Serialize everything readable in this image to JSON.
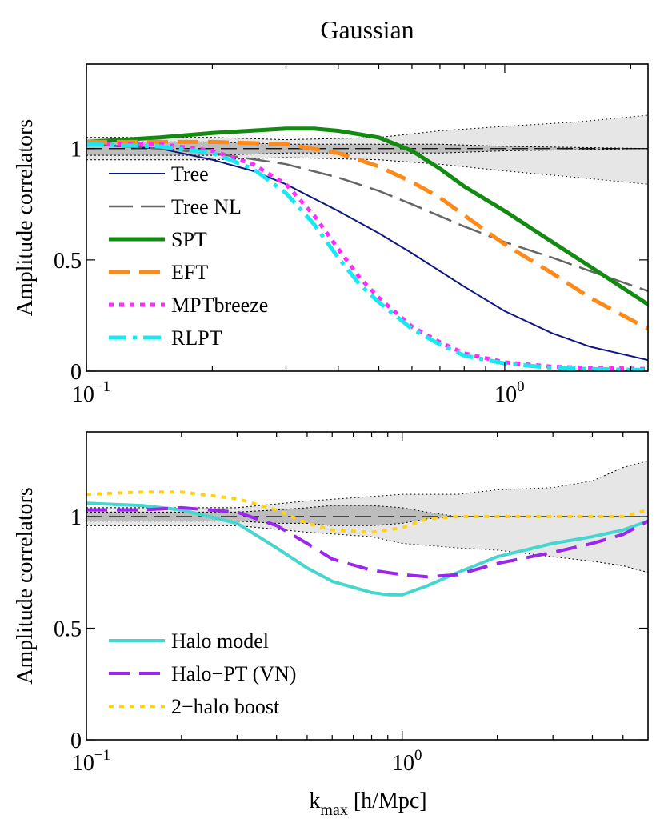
{
  "chart_data": [
    {
      "type": "line",
      "panel": "top",
      "title": "Gaussian",
      "xlabel": "",
      "ylabel": "Amplitude correlators",
      "xscale": "log",
      "xlim": [
        0.1,
        2.2
      ],
      "ylim": [
        0,
        1.38
      ],
      "xticks": [
        {
          "value": 0.1,
          "label": "10",
          "exp": "−1"
        },
        {
          "value": 1.0,
          "label": "10",
          "exp": "0"
        }
      ],
      "yticks": [
        {
          "value": 0,
          "label": "0"
        },
        {
          "value": 0.5,
          "label": "0.5"
        },
        {
          "value": 1,
          "label": "1"
        }
      ],
      "legend_position": "lower-left",
      "bands": [
        {
          "name": "outer-band",
          "color": "#e6e6e6",
          "x": [
            0.1,
            0.15,
            0.2,
            0.3,
            0.5,
            0.7,
            1.0,
            1.5,
            2.2
          ],
          "upper": [
            1.05,
            1.05,
            1.05,
            1.04,
            1.05,
            1.08,
            1.1,
            1.12,
            1.15
          ],
          "lower": [
            0.95,
            0.95,
            0.95,
            0.96,
            0.95,
            0.93,
            0.9,
            0.87,
            0.84
          ]
        },
        {
          "name": "inner-band",
          "color": "#bdbdbd",
          "x": [
            0.1,
            0.15,
            0.2,
            0.3,
            0.5,
            0.7,
            1.0,
            1.5,
            2.2
          ],
          "upper": [
            1.03,
            1.03,
            1.03,
            1.02,
            1.02,
            1.02,
            1.01,
            1.005,
            1.0
          ],
          "lower": [
            0.97,
            0.97,
            0.97,
            0.98,
            0.98,
            0.98,
            0.99,
            0.995,
            1.0
          ]
        }
      ],
      "reference_line": {
        "y": 1.0
      },
      "series": [
        {
          "name": "Tree",
          "color": "#0b1880",
          "dash": "solid",
          "width": 2,
          "x": [
            0.1,
            0.15,
            0.2,
            0.25,
            0.3,
            0.4,
            0.5,
            0.6,
            0.8,
            1.0,
            1.3,
            1.6,
            2.2
          ],
          "values": [
            1.02,
            1.0,
            0.95,
            0.9,
            0.84,
            0.72,
            0.62,
            0.53,
            0.38,
            0.27,
            0.17,
            0.11,
            0.05
          ]
        },
        {
          "name": "Tree NL",
          "color": "#666666",
          "dash": "longdash",
          "width": 2.5,
          "x": [
            0.1,
            0.15,
            0.2,
            0.3,
            0.4,
            0.5,
            0.6,
            0.8,
            1.0,
            1.3,
            1.6,
            2.2
          ],
          "values": [
            1.02,
            1.0,
            0.98,
            0.93,
            0.87,
            0.81,
            0.75,
            0.65,
            0.58,
            0.51,
            0.45,
            0.36
          ]
        },
        {
          "name": "SPT",
          "color": "#138a12",
          "dash": "solid",
          "width": 5,
          "x": [
            0.1,
            0.15,
            0.2,
            0.3,
            0.35,
            0.4,
            0.5,
            0.6,
            0.7,
            0.8,
            1.0,
            1.3,
            1.6,
            2.2
          ],
          "values": [
            1.03,
            1.05,
            1.07,
            1.09,
            1.09,
            1.08,
            1.05,
            0.99,
            0.91,
            0.83,
            0.72,
            0.58,
            0.47,
            0.3
          ]
        },
        {
          "name": "EFT",
          "color": "#ff8a1a",
          "dash": "dash",
          "width": 5,
          "x": [
            0.1,
            0.15,
            0.2,
            0.3,
            0.4,
            0.5,
            0.6,
            0.7,
            0.8,
            1.0,
            1.3,
            1.6,
            2.2
          ],
          "values": [
            1.03,
            1.03,
            1.03,
            1.02,
            0.98,
            0.92,
            0.85,
            0.78,
            0.7,
            0.57,
            0.44,
            0.33,
            0.19
          ]
        },
        {
          "name": "MPTbreeze",
          "color": "#ff2bff",
          "dash": "dot",
          "width": 5,
          "x": [
            0.1,
            0.15,
            0.2,
            0.25,
            0.3,
            0.35,
            0.4,
            0.45,
            0.5,
            0.6,
            0.7,
            0.8,
            1.0,
            1.3,
            1.6,
            2.2
          ],
          "values": [
            1.02,
            1.02,
            0.99,
            0.93,
            0.84,
            0.7,
            0.55,
            0.42,
            0.33,
            0.2,
            0.13,
            0.08,
            0.04,
            0.02,
            0.015,
            0.01
          ]
        },
        {
          "name": "RLPT",
          "color": "#18e9f0",
          "dash": "dashdot",
          "width": 5,
          "x": [
            0.1,
            0.15,
            0.2,
            0.25,
            0.3,
            0.35,
            0.4,
            0.45,
            0.5,
            0.6,
            0.7,
            0.8,
            1.0,
            1.3,
            1.6,
            2.2
          ],
          "values": [
            1.02,
            1.01,
            0.98,
            0.91,
            0.8,
            0.66,
            0.51,
            0.39,
            0.31,
            0.19,
            0.12,
            0.07,
            0.035,
            0.015,
            0.01,
            0.005
          ]
        }
      ]
    },
    {
      "type": "line",
      "panel": "bottom",
      "title": "",
      "xlabel": "k",
      "xlabel_sub": "max",
      "xlabel_rest": " [h/Mpc]",
      "ylabel": "Amplitude correlators",
      "xscale": "log",
      "xlim": [
        0.1,
        6.0
      ],
      "ylim": [
        0,
        1.38
      ],
      "xticks": [
        {
          "value": 0.1,
          "label": "10",
          "exp": "−1"
        },
        {
          "value": 1.0,
          "label": "10",
          "exp": "0"
        }
      ],
      "yticks": [
        {
          "value": 0,
          "label": "0"
        },
        {
          "value": 0.5,
          "label": "0.5"
        },
        {
          "value": 1,
          "label": "1"
        }
      ],
      "legend_position": "lower-left",
      "bands": [
        {
          "name": "outer-band",
          "color": "#e6e6e6",
          "x": [
            0.1,
            0.2,
            0.3,
            0.5,
            0.8,
            1.0,
            1.5,
            2.0,
            3.0,
            4.0,
            5.0,
            6.0
          ],
          "upper": [
            1.04,
            1.04,
            1.04,
            1.07,
            1.09,
            1.1,
            1.1,
            1.12,
            1.13,
            1.16,
            1.22,
            1.25
          ],
          "lower": [
            0.96,
            0.96,
            0.96,
            0.93,
            0.91,
            0.88,
            0.86,
            0.85,
            0.82,
            0.8,
            0.78,
            0.75
          ]
        },
        {
          "name": "inner-band",
          "color": "#bdbdbd",
          "x": [
            0.1,
            0.2,
            0.3,
            0.4,
            0.5,
            0.6,
            0.8,
            1.0,
            1.2,
            1.5,
            6.0
          ],
          "upper": [
            1.02,
            1.02,
            1.02,
            1.03,
            1.04,
            1.05,
            1.05,
            1.04,
            1.02,
            1.0,
            1.0
          ],
          "lower": [
            0.98,
            0.98,
            0.98,
            0.97,
            0.97,
            0.96,
            0.96,
            0.97,
            0.99,
            1.0,
            1.0
          ]
        }
      ],
      "reference_line": {
        "y": 1.0
      },
      "series": [
        {
          "name": "Halo model",
          "color": "#47d6cf",
          "dash": "solid",
          "width": 4,
          "x": [
            0.1,
            0.15,
            0.2,
            0.3,
            0.4,
            0.5,
            0.6,
            0.8,
            0.9,
            1.0,
            1.2,
            1.5,
            2.0,
            3.0,
            4.0,
            5.0,
            6.0
          ],
          "values": [
            1.06,
            1.05,
            1.03,
            0.97,
            0.86,
            0.77,
            0.71,
            0.66,
            0.65,
            0.65,
            0.69,
            0.75,
            0.82,
            0.88,
            0.91,
            0.94,
            0.98
          ]
        },
        {
          "name": "Halo−PT (VN)",
          "color": "#9b27ee",
          "dash": "dash",
          "width": 4,
          "x": [
            0.1,
            0.15,
            0.2,
            0.3,
            0.4,
            0.5,
            0.6,
            0.8,
            1.0,
            1.2,
            1.5,
            2.0,
            3.0,
            4.0,
            5.0,
            6.0
          ],
          "values": [
            1.03,
            1.03,
            1.04,
            1.02,
            0.96,
            0.88,
            0.81,
            0.76,
            0.74,
            0.73,
            0.74,
            0.79,
            0.84,
            0.88,
            0.92,
            0.98
          ]
        },
        {
          "name": "2−halo boost",
          "color": "#ffd21a",
          "dash": "dot",
          "width": 4,
          "x": [
            0.1,
            0.15,
            0.2,
            0.3,
            0.4,
            0.5,
            0.6,
            0.8,
            1.0,
            1.2,
            1.5,
            2.0,
            3.0,
            4.0,
            5.0,
            6.0
          ],
          "values": [
            1.1,
            1.11,
            1.11,
            1.08,
            1.03,
            0.97,
            0.94,
            0.93,
            0.95,
            0.99,
            1.0,
            1.0,
            1.0,
            1.0,
            1.0,
            1.03
          ]
        }
      ]
    }
  ]
}
